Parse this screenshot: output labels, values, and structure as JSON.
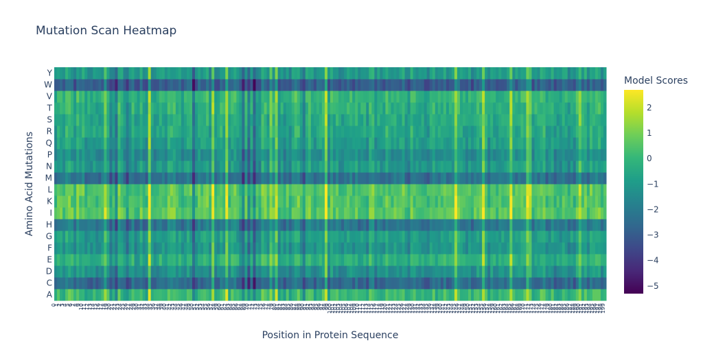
{
  "chart_data": {
    "type": "heatmap",
    "title": "Mutation Scan Heatmap",
    "xlabel": "Position in Protein Sequence",
    "ylabel": "Amino Acid Mutations",
    "y_categories": [
      "A",
      "C",
      "D",
      "E",
      "F",
      "G",
      "H",
      "I",
      "K",
      "L",
      "M",
      "N",
      "P",
      "Q",
      "R",
      "S",
      "T",
      "V",
      "W",
      "Y"
    ],
    "n_positions": 200,
    "colorscale": "Viridis",
    "colorscale_stops": [
      "#440154",
      "#482878",
      "#3e4989",
      "#31688e",
      "#26828e",
      "#1f9e89",
      "#35b779",
      "#6ece58",
      "#b5de2b",
      "#fde725"
    ],
    "zlim": [
      -5.3,
      2.7
    ],
    "colorbar": {
      "title": "Model Scores",
      "ticks": [
        2,
        1,
        0,
        -1,
        -2,
        -3,
        -4,
        -5
      ],
      "tick_labels": [
        "2",
        "1",
        "0",
        "−1",
        "−2",
        "−3",
        "−4",
        "−5"
      ]
    },
    "row_mean_scores": {
      "A": 0.0,
      "C": -2.6,
      "D": -1.3,
      "E": -0.3,
      "F": -1.1,
      "G": -0.9,
      "H": -2.1,
      "I": 0.6,
      "K": 0.4,
      "L": 0.5,
      "M": -2.3,
      "N": -1.0,
      "P": -1.4,
      "Q": -0.8,
      "R": -0.6,
      "S": -0.5,
      "T": -0.3,
      "V": -0.1,
      "W": -2.9,
      "Y": -1.0
    },
    "high_score_positions": [
      18,
      34,
      57,
      62,
      78,
      80,
      98,
      145,
      155,
      165,
      171,
      172,
      190
    ],
    "low_score_positions": [
      20,
      22,
      26,
      50,
      68,
      70,
      72,
      90
    ]
  }
}
